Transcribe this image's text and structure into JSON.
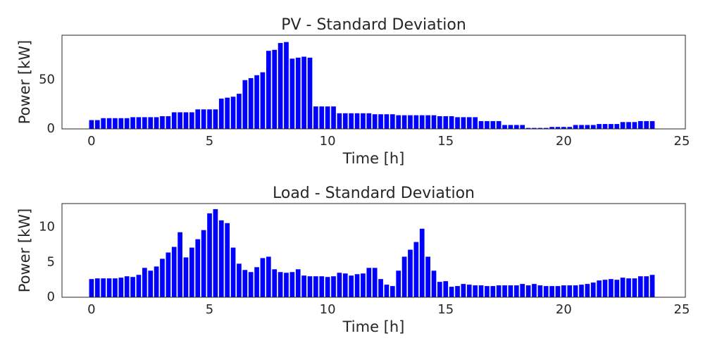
{
  "chart_data": [
    {
      "type": "bar",
      "title": "PV - Standard Deviation",
      "xlabel": "Time [h]",
      "ylabel": "Power [kW]",
      "color": "#0000ff",
      "x": [
        0,
        0.25,
        0.5,
        0.75,
        1,
        1.25,
        1.5,
        1.75,
        2,
        2.25,
        2.5,
        2.75,
        3,
        3.25,
        3.5,
        3.75,
        4,
        4.25,
        4.5,
        4.75,
        5,
        5.25,
        5.5,
        5.75,
        6,
        6.25,
        6.5,
        6.75,
        7,
        7.25,
        7.5,
        7.75,
        8,
        8.25,
        8.5,
        8.75,
        9,
        9.25,
        9.5,
        9.75,
        10,
        10.25,
        10.5,
        10.75,
        11,
        11.25,
        11.5,
        11.75,
        12,
        12.25,
        12.5,
        12.75,
        13,
        13.25,
        13.5,
        13.75,
        14,
        14.25,
        14.5,
        14.75,
        15,
        15.25,
        15.5,
        15.75,
        16,
        16.25,
        16.5,
        16.75,
        17,
        17.25,
        17.5,
        17.75,
        18,
        18.25,
        18.5,
        18.75,
        19,
        19.25,
        19.5,
        19.75,
        20,
        20.25,
        20.5,
        20.75,
        21,
        21.25,
        21.5,
        21.75,
        22,
        22.25,
        22.5,
        22.75,
        23,
        23.25,
        23.5,
        23.75
      ],
      "values": [
        9,
        9,
        11,
        11,
        11,
        11,
        11,
        12,
        12,
        12,
        12,
        12,
        13,
        13,
        17,
        17,
        17,
        17,
        20,
        20,
        20,
        20,
        31,
        32,
        33,
        36,
        50,
        52,
        55,
        58,
        80,
        81,
        88,
        89,
        72,
        73,
        74,
        73,
        23,
        23,
        23,
        23,
        16,
        16,
        16,
        16,
        16,
        16,
        15,
        15,
        15,
        15,
        14,
        14,
        14,
        14,
        14,
        14,
        14,
        13,
        13,
        13,
        12,
        12,
        12,
        12,
        8,
        8,
        8,
        8,
        4,
        4,
        4,
        4,
        1,
        1,
        1,
        1,
        2,
        2,
        2,
        2,
        4,
        4,
        4,
        4,
        5,
        5,
        5,
        5,
        7,
        7,
        7,
        8,
        8,
        8
      ],
      "xlim": [
        -1.25,
        25.15
      ],
      "xticks": [
        0,
        5,
        10,
        15,
        20,
        25
      ],
      "ylim": [
        0,
        96
      ],
      "yticks": [
        0,
        50
      ]
    },
    {
      "type": "bar",
      "title": "Load - Standard Deviation",
      "xlabel": "Time [h]",
      "ylabel": "Power [kW]",
      "color": "#0000ff",
      "x": [
        0,
        0.25,
        0.5,
        0.75,
        1,
        1.25,
        1.5,
        1.75,
        2,
        2.25,
        2.5,
        2.75,
        3,
        3.25,
        3.5,
        3.75,
        4,
        4.25,
        4.5,
        4.75,
        5,
        5.25,
        5.5,
        5.75,
        6,
        6.25,
        6.5,
        6.75,
        7,
        7.25,
        7.5,
        7.75,
        8,
        8.25,
        8.5,
        8.75,
        9,
        9.25,
        9.5,
        9.75,
        10,
        10.25,
        10.5,
        10.75,
        11,
        11.25,
        11.5,
        11.75,
        12,
        12.25,
        12.5,
        12.75,
        13,
        13.25,
        13.5,
        13.75,
        14,
        14.25,
        14.5,
        14.75,
        15,
        15.25,
        15.5,
        15.75,
        16,
        16.25,
        16.5,
        16.75,
        17,
        17.25,
        17.5,
        17.75,
        18,
        18.25,
        18.5,
        18.75,
        19,
        19.25,
        19.5,
        19.75,
        20,
        20.25,
        20.5,
        20.75,
        21,
        21.25,
        21.5,
        21.75,
        22,
        22.25,
        22.5,
        22.75,
        23,
        23.25,
        23.5,
        23.75
      ],
      "values": [
        2.6,
        2.7,
        2.7,
        2.7,
        2.7,
        2.8,
        3.0,
        2.9,
        3.2,
        4.2,
        3.8,
        4.4,
        5.5,
        6.4,
        7.2,
        9.3,
        5.7,
        7.1,
        8.3,
        9.6,
        12.0,
        12.6,
        11.0,
        10.6,
        7.1,
        4.8,
        3.9,
        3.6,
        4.3,
        5.6,
        5.8,
        4.0,
        3.6,
        3.5,
        3.6,
        4.0,
        3.1,
        3.0,
        3.0,
        3.0,
        2.9,
        3.0,
        3.5,
        3.4,
        3.1,
        3.3,
        3.4,
        4.2,
        4.2,
        2.6,
        1.8,
        1.6,
        3.8,
        5.8,
        6.8,
        7.9,
        9.8,
        5.8,
        3.8,
        2.2,
        2.3,
        1.5,
        1.6,
        1.9,
        1.8,
        1.7,
        1.7,
        1.6,
        1.6,
        1.7,
        1.7,
        1.7,
        1.7,
        1.9,
        1.7,
        1.9,
        1.7,
        1.6,
        1.6,
        1.6,
        1.7,
        1.7,
        1.7,
        1.8,
        1.9,
        2.1,
        2.4,
        2.5,
        2.6,
        2.5,
        2.8,
        2.7,
        2.7,
        3.0,
        3.0,
        3.2
      ],
      "xlim": [
        -1.25,
        25.15
      ],
      "xticks": [
        0,
        5,
        10,
        15,
        20,
        25
      ],
      "ylim": [
        0,
        13.4
      ],
      "yticks": [
        0,
        5,
        10
      ]
    }
  ]
}
